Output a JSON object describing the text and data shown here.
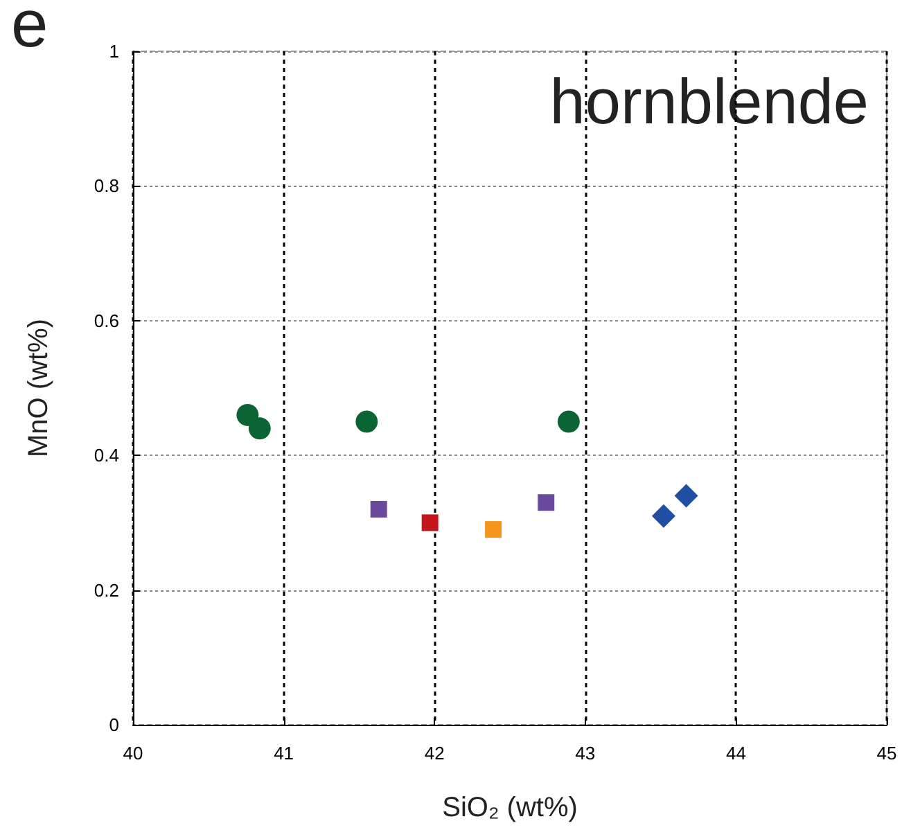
{
  "chart_data": {
    "type": "scatter",
    "xlabel": "SiO₂ (wt%)",
    "ylabel": "MnO (wt%)",
    "annotations": [
      "e",
      "hornblende"
    ],
    "series": [
      {
        "color": "#0b6434",
        "marker": "circle",
        "x": [
          40.76,
          40.84,
          41.55,
          42.89
        ],
        "values": [
          0.46,
          0.44,
          0.45,
          0.45
        ]
      },
      {
        "color": "#6a4a9c",
        "marker": "square",
        "x": [
          41.63,
          42.74
        ],
        "values": [
          0.32,
          0.33
        ]
      },
      {
        "color": "#c4161c",
        "marker": "square",
        "x": [
          41.97
        ],
        "values": [
          0.3
        ]
      },
      {
        "color": "#f7941d",
        "marker": "square",
        "x": [
          42.39
        ],
        "values": [
          0.29
        ]
      },
      {
        "color": "#1f4ea3",
        "marker": "diamond",
        "x": [
          43.52,
          43.67
        ],
        "values": [
          0.31,
          0.34
        ]
      }
    ],
    "xlim": [
      40,
      45
    ],
    "xticks": [
      40,
      41,
      42,
      43,
      44,
      45
    ],
    "ylim": [
      0,
      1
    ],
    "yticks": [
      0,
      0.2,
      0.4,
      0.6,
      0.8,
      1
    ],
    "grid": true
  }
}
